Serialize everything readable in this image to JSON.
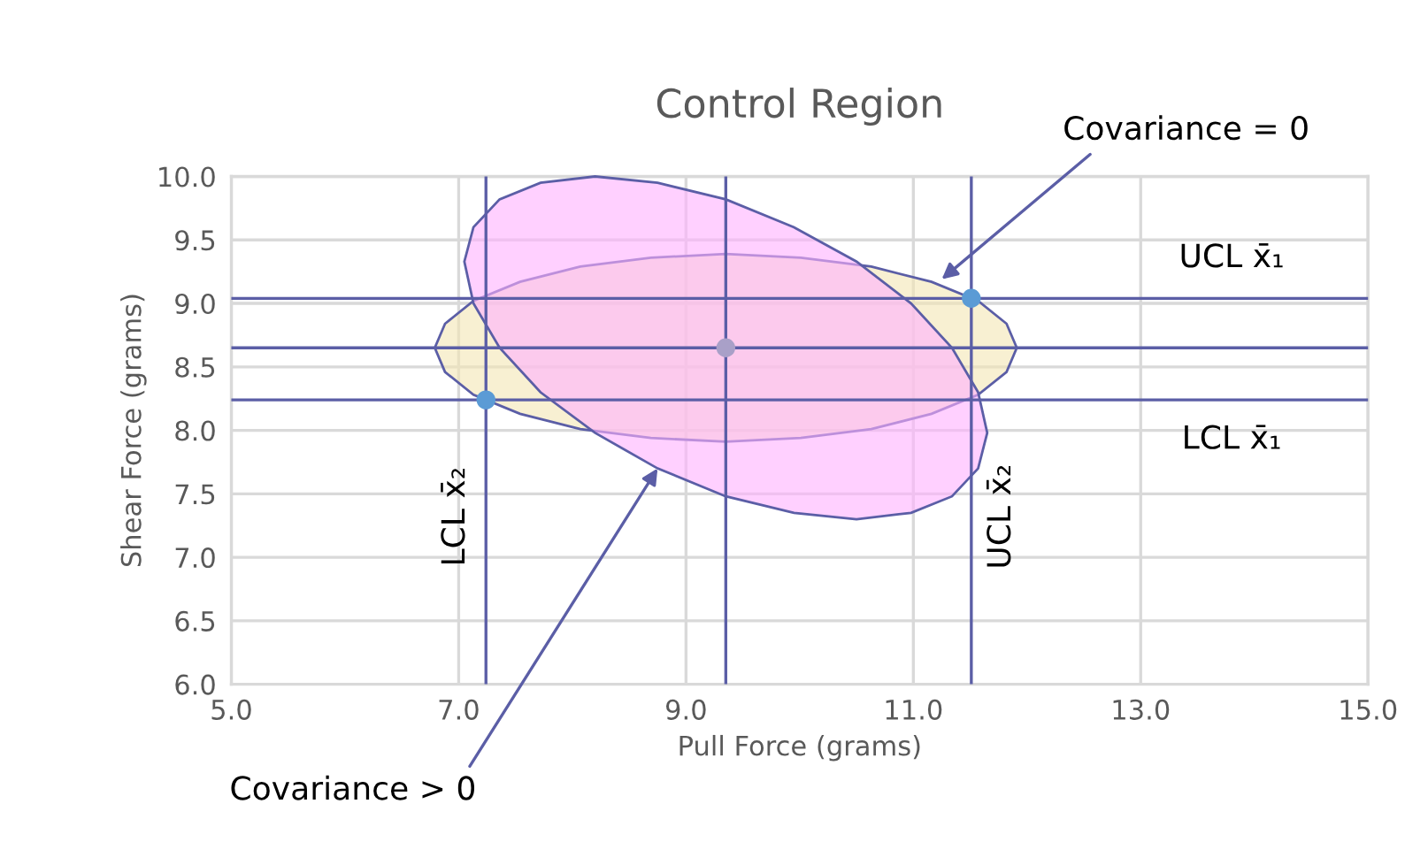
{
  "chart_data": {
    "type": "scatter",
    "title": "Control Region",
    "xlabel": "Pull Force (grams)",
    "ylabel": "Shear Force (grams)",
    "xlim": [
      5,
      15
    ],
    "ylim": [
      6,
      10
    ],
    "xticks": [
      {
        "value": 5,
        "label": "5.0"
      },
      {
        "value": 7,
        "label": "7.0"
      },
      {
        "value": 9,
        "label": "9.0"
      },
      {
        "value": 11,
        "label": "11.0"
      },
      {
        "value": 13,
        "label": "13.0"
      },
      {
        "value": 15,
        "label": "15.0"
      }
    ],
    "yticks": [
      {
        "value": 6,
        "label": "6.0"
      },
      {
        "value": 6.5,
        "label": "6.5"
      },
      {
        "value": 7,
        "label": "7.0"
      },
      {
        "value": 7.5,
        "label": "7.5"
      },
      {
        "value": 8,
        "label": "8.0"
      },
      {
        "value": 8.5,
        "label": "8.5"
      },
      {
        "value": 9,
        "label": "9.0"
      },
      {
        "value": 9.5,
        "label": "9.5"
      },
      {
        "value": 10,
        "label": "10.0"
      }
    ],
    "grid": true,
    "series": [
      {
        "type": "area",
        "color": "#f3e6b4",
        "x": [
          11.91,
          11.82,
          11.57,
          11.16,
          10.63,
          10.01,
          9.35,
          8.69,
          8.07,
          7.54,
          7.13,
          6.88,
          6.79,
          6.88,
          7.13,
          7.54,
          8.07,
          8.69,
          9.35,
          10.01,
          10.63,
          11.16,
          11.57,
          11.82,
          11.91
        ],
        "values": [
          8.65,
          8.84,
          9.02,
          9.17,
          9.29,
          9.36,
          9.39,
          9.36,
          9.29,
          9.17,
          9.02,
          8.84,
          8.65,
          8.46,
          8.28,
          8.13,
          8.01,
          7.94,
          7.91,
          7.94,
          8.01,
          8.13,
          8.28,
          8.46,
          8.65
        ]
      },
      {
        "type": "area",
        "color": "#ffb0ff",
        "x": [
          11.65,
          11.57,
          11.34,
          10.98,
          10.5,
          9.95,
          9.35,
          8.75,
          8.2,
          7.72,
          7.36,
          7.13,
          7.05,
          7.13,
          7.36,
          7.72,
          8.2,
          8.75,
          9.35,
          9.95,
          10.5,
          10.98,
          11.34,
          11.57,
          11.65
        ],
        "values": [
          7.98,
          8.3,
          8.65,
          9.0,
          9.33,
          9.6,
          9.82,
          9.95,
          10.0,
          9.95,
          9.82,
          9.6,
          9.33,
          9.0,
          8.65,
          8.3,
          7.98,
          7.7,
          7.48,
          7.35,
          7.3,
          7.35,
          7.48,
          7.7,
          7.98
        ]
      },
      {
        "color": "#5b9bd5",
        "x": [
          7.24,
          11.51
        ],
        "values": [
          8.24,
          9.04
        ]
      },
      {
        "color": "#a9a0c8",
        "x": [
          9.35
        ],
        "values": [
          8.65
        ]
      }
    ],
    "ref_lines": [
      {
        "axis": "y",
        "value": 9.04,
        "label": "UCL x̄₁",
        "color": "#5b5ea6"
      },
      {
        "axis": "y",
        "value": 8.65,
        "color": "#5b5ea6"
      },
      {
        "axis": "y",
        "value": 8.24,
        "label": "LCL x̄₁",
        "color": "#5b5ea6"
      },
      {
        "axis": "x",
        "value": 7.24,
        "label": "LCL x̄₂",
        "color": "#5b5ea6"
      },
      {
        "axis": "x",
        "value": 9.35,
        "color": "#5b5ea6"
      },
      {
        "axis": "x",
        "value": 11.51,
        "label": "UCL x̄₂",
        "color": "#5b5ea6"
      }
    ],
    "annotations": [
      {
        "text": "Covariance = 0",
        "x": 11.25,
        "y": 9.19
      },
      {
        "text": "Covariance > 0",
        "x": 8.75,
        "y": 7.7
      }
    ]
  }
}
